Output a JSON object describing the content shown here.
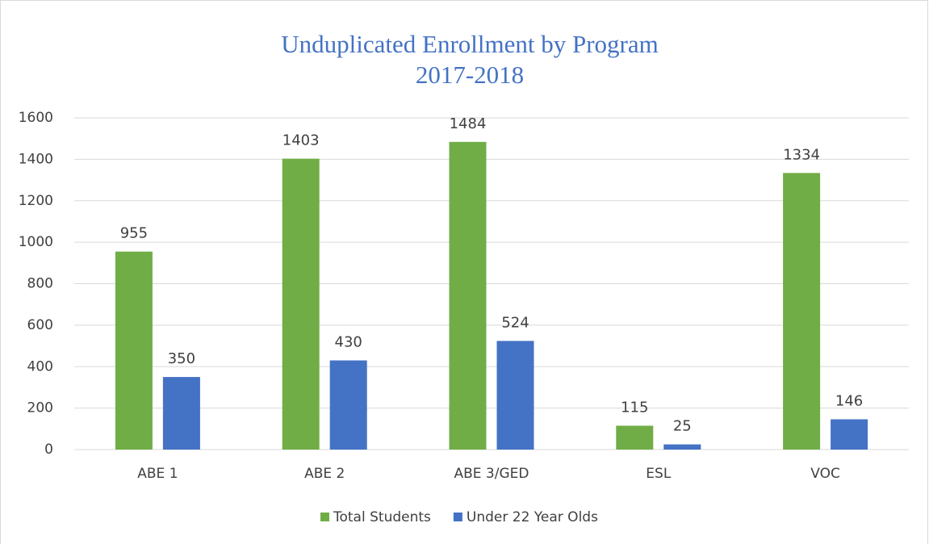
{
  "chart_data": {
    "type": "bar",
    "title": "Unduplicated Enrollment by Program",
    "subtitle": "2017-2018",
    "categories": [
      "ABE 1",
      "ABE 2",
      "ABE 3/GED",
      "ESL",
      "VOC"
    ],
    "series": [
      {
        "name": "Total Students",
        "color": "#70ad47",
        "values": [
          955,
          1403,
          1484,
          115,
          1334
        ]
      },
      {
        "name": "Under 22 Year Olds",
        "color": "#4472c4",
        "values": [
          350,
          430,
          524,
          25,
          146
        ]
      }
    ],
    "ylim": [
      0,
      1600
    ],
    "yticks": [
      0,
      200,
      400,
      600,
      800,
      1000,
      1200,
      1400,
      1600
    ],
    "grid": true,
    "legend": "bottom"
  }
}
